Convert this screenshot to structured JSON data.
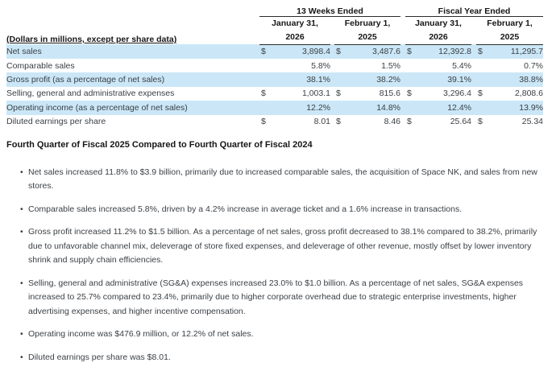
{
  "colors": {
    "row_highlight": "#cbe7f7",
    "rule": "#2b2b2b"
  },
  "table": {
    "currency_symbol": "$",
    "groups": [
      "13 Weeks Ended",
      "Fiscal Year Ended"
    ],
    "col_headers": [
      {
        "line1": "January 31,",
        "line2": "2026"
      },
      {
        "line1": "February 1,",
        "line2": "2025"
      },
      {
        "line1": "January 31,",
        "line2": "2026"
      },
      {
        "line1": "February 1,",
        "line2": "2025"
      }
    ],
    "row_label_header": "(Dollars in millions, except per share data)",
    "rows": [
      {
        "label": "Net sales",
        "currency": true,
        "highlight": true,
        "values": [
          "3,898.4",
          "3,487.6",
          "12,392.8",
          "11,295.7"
        ]
      },
      {
        "label": "Comparable sales",
        "currency": false,
        "highlight": false,
        "values": [
          "5.8%",
          "1.5%",
          "5.4%",
          "0.7%"
        ]
      },
      {
        "label": "Gross profit (as a percentage of net sales)",
        "currency": false,
        "highlight": true,
        "values": [
          "38.1%",
          "38.2%",
          "39.1%",
          "38.8%"
        ]
      },
      {
        "label": "Selling, general and administrative expenses",
        "currency": true,
        "highlight": false,
        "values": [
          "1,003.1",
          "815.6",
          "3,296.4",
          "2,808.6"
        ]
      },
      {
        "label": "Operating income (as a percentage of net sales)",
        "currency": false,
        "highlight": true,
        "values": [
          "12.2%",
          "14.8%",
          "12.4%",
          "13.9%"
        ]
      },
      {
        "label": "Diluted earnings per share",
        "currency": true,
        "highlight": false,
        "values": [
          "8.01",
          "8.46",
          "25.64",
          "25.34"
        ]
      }
    ]
  },
  "section": {
    "heading": "Fourth Quarter of Fiscal 2025 Compared to Fourth Quarter of Fiscal 2024",
    "bullets": [
      "Net sales increased 11.8% to $3.9 billion, primarily due to increased comparable sales, the acquisition of Space NK, and sales from new stores.",
      "Comparable sales increased 5.8%, driven by a 4.2% increase in average ticket and a 1.6% increase in transactions.",
      "Gross profit increased 11.2% to $1.5 billion. As a percentage of net sales, gross profit decreased to 38.1% compared to 38.2%, primarily due to unfavorable channel mix, deleverage of store fixed expenses, and deleverage of other revenue, mostly offset by lower inventory shrink and supply chain efficiencies.",
      "Selling, general and administrative (SG&A) expenses increased 23.0% to $1.0 billion. As a percentage of net sales, SG&A expenses increased to 25.7% compared to 23.4%, primarily due to higher corporate overhead due to strategic enterprise investments, higher advertising expenses, and higher incentive compensation.",
      "Operating income was $476.9 million, or 12.2% of net sales.",
      "Diluted earnings per share was $8.01."
    ]
  }
}
